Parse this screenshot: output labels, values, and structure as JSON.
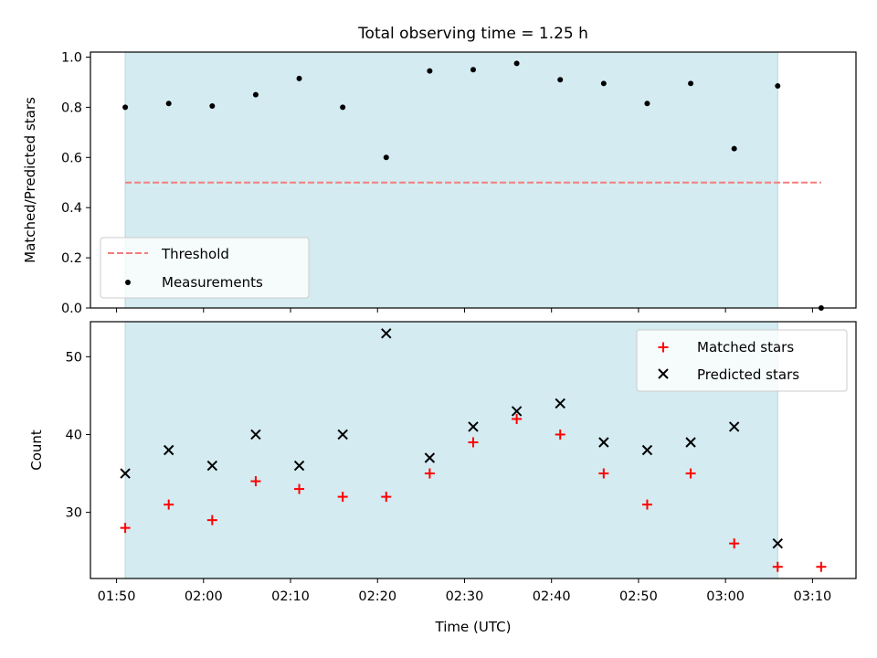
{
  "figure": {
    "title": "Total observing time = 1.25 h",
    "xlabel": "Time (UTC)"
  },
  "colors": {
    "shade": "#d3ebf1",
    "shade_edge": "#b3d7df",
    "threshold": "#f47d7d",
    "measurements": "#000000",
    "matched": "#ff0000",
    "predicted": "#000000"
  },
  "chart_data": [
    {
      "type": "scatter",
      "ylabel": "Matched/Predicted stars",
      "xlim": [
        "01:47",
        "03:15"
      ],
      "ylim": [
        0.0,
        1.02
      ],
      "yticks": [
        0.0,
        0.2,
        0.4,
        0.6,
        0.8,
        1.0
      ],
      "ytick_labels": [
        "0.0",
        "0.2",
        "0.4",
        "0.6",
        "0.8",
        "1.0"
      ],
      "shaded_span": [
        "01:51",
        "03:06"
      ],
      "legend_position": "lower-left",
      "threshold": {
        "name": "Threshold",
        "value": 0.5,
        "x_range": [
          "01:51",
          "03:11"
        ],
        "style": "dashed"
      },
      "series": [
        {
          "name": "Measurements",
          "marker": "dot",
          "x": [
            "01:51",
            "01:56",
            "02:01",
            "02:06",
            "02:11",
            "02:16",
            "02:21",
            "02:26",
            "02:31",
            "02:36",
            "02:41",
            "02:46",
            "02:51",
            "02:56",
            "03:01",
            "03:06",
            "03:11"
          ],
          "values": [
            0.8,
            0.815,
            0.805,
            0.85,
            0.915,
            0.8,
            0.6,
            0.945,
            0.95,
            0.975,
            0.91,
            0.895,
            0.815,
            0.895,
            0.635,
            0.885,
            0.0
          ]
        }
      ]
    },
    {
      "type": "scatter",
      "ylabel": "Count",
      "xlim": [
        "01:47",
        "03:15"
      ],
      "ylim": [
        21.5,
        54.5
      ],
      "yticks": [
        30,
        40,
        50
      ],
      "ytick_labels": [
        "30",
        "40",
        "50"
      ],
      "xticks": [
        "01:50",
        "02:00",
        "02:10",
        "02:20",
        "02:30",
        "02:40",
        "02:50",
        "03:00",
        "03:10"
      ],
      "xtick_labels": [
        "01:50",
        "02:00",
        "02:10",
        "02:20",
        "02:30",
        "02:40",
        "02:50",
        "03:00",
        "03:10"
      ],
      "shaded_span": [
        "01:51",
        "03:06"
      ],
      "legend_position": "top-right",
      "series": [
        {
          "name": "Matched stars",
          "marker": "plus",
          "x": [
            "01:51",
            "01:56",
            "02:01",
            "02:06",
            "02:11",
            "02:16",
            "02:21",
            "02:26",
            "02:31",
            "02:36",
            "02:41",
            "02:46",
            "02:51",
            "02:56",
            "03:01",
            "03:06",
            "03:11"
          ],
          "values": [
            28,
            31,
            29,
            34,
            33,
            32,
            32,
            35,
            39,
            42,
            40,
            35,
            31,
            35,
            26,
            23,
            23
          ]
        },
        {
          "name": "Predicted stars",
          "marker": "x",
          "x": [
            "01:51",
            "01:56",
            "02:01",
            "02:06",
            "02:11",
            "02:16",
            "02:21",
            "02:26",
            "02:31",
            "02:36",
            "02:41",
            "02:46",
            "02:51",
            "02:56",
            "03:01",
            "03:06"
          ],
          "values": [
            35,
            38,
            36,
            40,
            36,
            40,
            53,
            37,
            41,
            43,
            44,
            39,
            38,
            39,
            41,
            26
          ]
        }
      ]
    }
  ]
}
